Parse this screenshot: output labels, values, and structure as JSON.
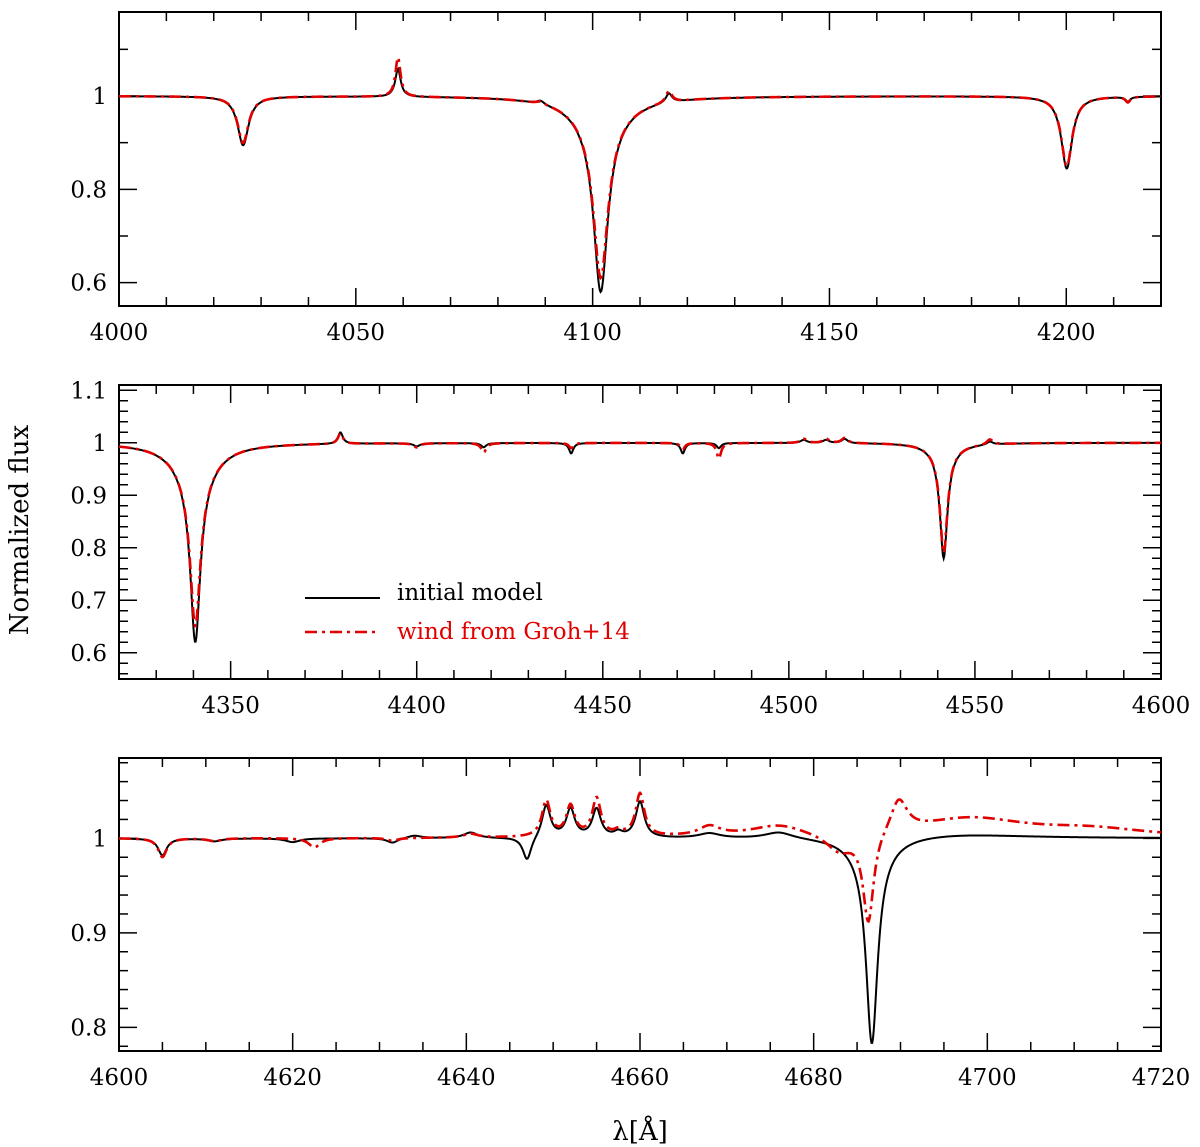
{
  "figure": {
    "ylabel": "Normalized flux",
    "xlabel": "λ[Å]"
  },
  "legend": {
    "items": [
      {
        "label": "initial model",
        "color": "#000000",
        "style": "solid"
      },
      {
        "label": "wind from Groh+14",
        "color": "#e00000",
        "style": "dash-dot"
      }
    ]
  },
  "chart_data": [
    {
      "type": "line",
      "xlim": [
        4000,
        4220
      ],
      "ylim": [
        0.55,
        1.18
      ],
      "xticks": [
        4000,
        4050,
        4100,
        4150,
        4200
      ],
      "yticks": [
        0.6,
        0.8,
        1
      ],
      "ytick_labels": [
        "0.6",
        "0.8",
        "1"
      ],
      "grid": false,
      "series": [
        {
          "name": "initial model",
          "color": "#000000",
          "style": "solid",
          "continuum": 1.0,
          "features": [
            [
              4026.2,
              -0.105,
              1.4
            ],
            [
              4058.9,
              0.06,
              0.7
            ],
            [
              4089.0,
              0.008,
              1.0
            ],
            [
              4101.7,
              -0.36,
              1.8
            ],
            [
              4101.7,
              -0.06,
              6.0
            ],
            [
              4116.1,
              0.02,
              0.8
            ],
            [
              4200.1,
              -0.155,
              1.4
            ],
            [
              4213.0,
              -0.01,
              0.6
            ]
          ]
        },
        {
          "name": "wind from Groh+14",
          "color": "#e00000",
          "style": "dash-dot",
          "continuum": 1.0,
          "features": [
            [
              4026.2,
              -0.1,
              1.4
            ],
            [
              4058.9,
              0.085,
              0.65
            ],
            [
              4089.0,
              0.006,
              1.0
            ],
            [
              4101.7,
              -0.33,
              1.85
            ],
            [
              4101.7,
              -0.06,
              6.0
            ],
            [
              4116.1,
              0.025,
              0.8
            ],
            [
              4200.1,
              -0.15,
              1.4
            ],
            [
              4213.0,
              -0.012,
              0.6
            ]
          ]
        }
      ]
    },
    {
      "type": "line",
      "xlim": [
        4320,
        4600
      ],
      "ylim": [
        0.55,
        1.11
      ],
      "xticks": [
        4350,
        4400,
        4450,
        4500,
        4550,
        4600
      ],
      "yticks": [
        0.6,
        0.7,
        0.8,
        0.9,
        1,
        1.1
      ],
      "ytick_labels": [
        "0.6",
        "0.7",
        "0.8",
        "0.9",
        "1",
        "1.1"
      ],
      "grid": false,
      "series": [
        {
          "name": "initial model",
          "color": "#000000",
          "style": "solid",
          "continuum": 1.0,
          "features": [
            [
              4340.5,
              -0.31,
              1.6
            ],
            [
              4340.5,
              -0.07,
              6.0
            ],
            [
              4379.5,
              0.022,
              0.8
            ],
            [
              4400.0,
              -0.006,
              1.0
            ],
            [
              4418.0,
              -0.008,
              0.8
            ],
            [
              4441.5,
              -0.02,
              0.7
            ],
            [
              4471.5,
              -0.02,
              0.7
            ],
            [
              4481.2,
              -0.01,
              0.7
            ],
            [
              4504.0,
              0.006,
              1.0
            ],
            [
              4510.0,
              0.006,
              1.0
            ],
            [
              4515.0,
              0.008,
              1.0
            ],
            [
              4541.6,
              -0.2,
              1.2
            ],
            [
              4541.6,
              -0.02,
              4.0
            ],
            [
              4554.0,
              0.006,
              1.0
            ]
          ]
        },
        {
          "name": "wind from Groh+14",
          "color": "#e00000",
          "style": "dash-dot",
          "continuum": 1.0,
          "features": [
            [
              4340.5,
              -0.28,
              1.65
            ],
            [
              4340.5,
              -0.07,
              6.0
            ],
            [
              4379.5,
              0.02,
              0.8
            ],
            [
              4400.0,
              -0.008,
              1.0
            ],
            [
              4418.0,
              -0.018,
              0.8
            ],
            [
              4441.5,
              -0.01,
              0.7
            ],
            [
              4471.5,
              -0.012,
              0.7
            ],
            [
              4481.2,
              -0.03,
              0.7
            ],
            [
              4504.0,
              0.008,
              1.0
            ],
            [
              4510.0,
              0.008,
              1.0
            ],
            [
              4515.0,
              0.01,
              1.0
            ],
            [
              4541.6,
              -0.19,
              1.2
            ],
            [
              4541.6,
              -0.02,
              4.0
            ],
            [
              4554.0,
              0.01,
              1.0
            ]
          ]
        }
      ]
    },
    {
      "type": "line",
      "xlim": [
        4600,
        4720
      ],
      "ylim": [
        0.775,
        1.085
      ],
      "xticks": [
        4600,
        4620,
        4640,
        4660,
        4680,
        4700,
        4720
      ],
      "yticks": [
        0.8,
        0.9,
        1
      ],
      "ytick_labels": [
        "0.8",
        "0.9",
        "1"
      ],
      "grid": false,
      "series": [
        {
          "name": "initial model",
          "color": "#000000",
          "style": "solid",
          "continuum": 1.0,
          "features": [
            [
              4605.0,
              -0.018,
              0.6
            ],
            [
              4611.0,
              -0.003,
              1.0
            ],
            [
              4620.0,
              -0.004,
              1.0
            ],
            [
              4631.5,
              -0.005,
              0.8
            ],
            [
              4634.0,
              0.003,
              1.0
            ],
            [
              4640.5,
              0.006,
              1.0
            ],
            [
              4647.0,
              -0.025,
              0.6
            ],
            [
              4649.2,
              0.035,
              0.6
            ],
            [
              4652.0,
              0.03,
              0.6
            ],
            [
              4655.0,
              0.03,
              0.6
            ],
            [
              4657.5,
              0.005,
              0.6
            ],
            [
              4660.0,
              0.038,
              0.6
            ],
            [
              4668.0,
              0.005,
              1.5
            ],
            [
              4676.0,
              0.007,
              2.0
            ],
            [
              4686.7,
              -0.2,
              0.8
            ],
            [
              4686.7,
              -0.02,
              2.5
            ],
            [
              4696.0,
              0.005,
              10.0
            ]
          ]
        },
        {
          "name": "wind from Groh+14",
          "color": "#e00000",
          "style": "dash-dot",
          "continuum": 1.0,
          "features": [
            [
              4605.0,
              -0.02,
              0.6
            ],
            [
              4611.0,
              -0.003,
              1.0
            ],
            [
              4622.5,
              -0.01,
              0.8
            ],
            [
              4631.5,
              -0.003,
              0.8
            ],
            [
              4640.5,
              0.004,
              1.0
            ],
            [
              4649.2,
              0.038,
              0.6
            ],
            [
              4652.0,
              0.032,
              0.6
            ],
            [
              4655.0,
              0.04,
              0.6
            ],
            [
              4657.5,
              0.005,
              0.6
            ],
            [
              4660.0,
              0.045,
              0.6
            ],
            [
              4668.0,
              0.01,
              1.5
            ],
            [
              4676.0,
              0.012,
              4.0
            ],
            [
              4686.3,
              -0.095,
              0.75
            ],
            [
              4683.0,
              -0.02,
              2.0
            ],
            [
              4689.8,
              0.035,
              1.2
            ],
            [
              4698.0,
              0.02,
              8.0
            ],
            [
              4712.0,
              0.008,
              8.0
            ]
          ]
        }
      ]
    }
  ]
}
